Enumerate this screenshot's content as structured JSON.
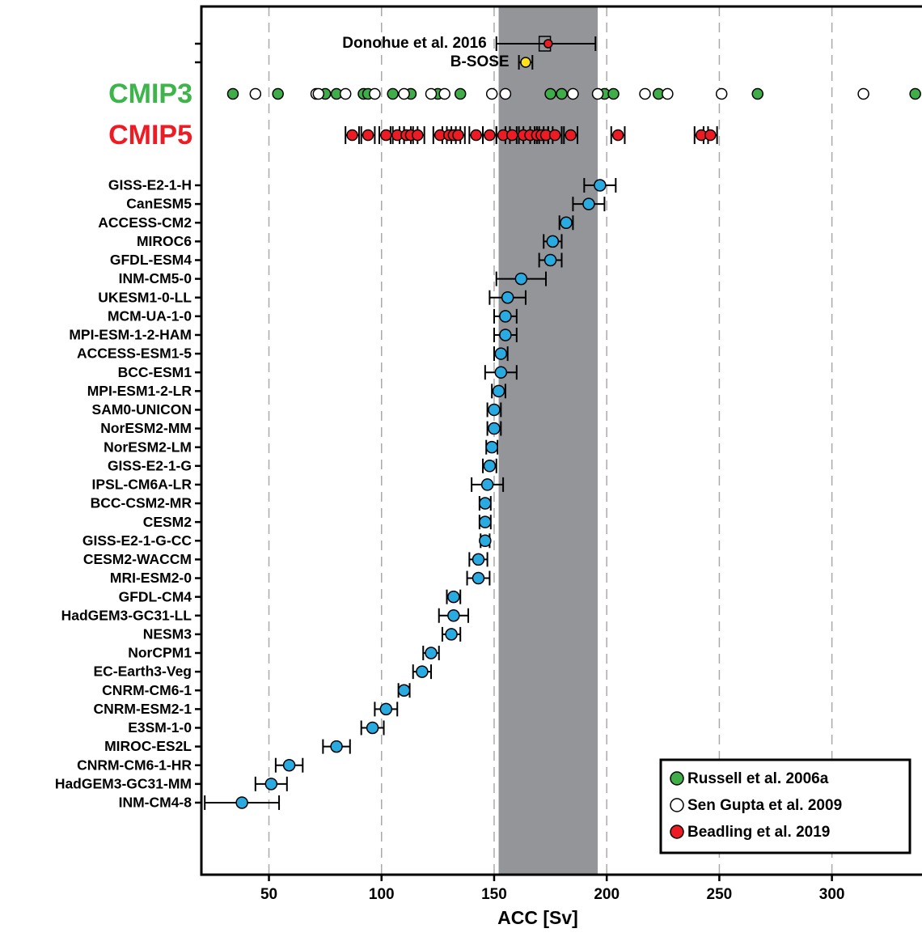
{
  "chart_data": {
    "type": "errorbar-dot",
    "xlabel": "ACC [Sv]",
    "xlim": [
      20,
      340
    ],
    "xticks": [
      50,
      100,
      150,
      200,
      250,
      300
    ],
    "grid": true,
    "band": [
      152,
      196
    ],
    "band_color": "#939598",
    "references": [
      {
        "name": "Donohue et al. 2016",
        "value": 173,
        "error": 22,
        "box": [
          170,
          175
        ],
        "dot": 174,
        "dot_color": "#ed1c24"
      },
      {
        "name": "B-SOSE",
        "value": 164,
        "error": 3,
        "color": "#ffe11b"
      }
    ],
    "groups": [
      {
        "name": "CMIP3",
        "color": "#3db54a",
        "series": [
          {
            "name": "Russell et al. 2006a",
            "color": "#3fae49",
            "values": [
              34,
              54,
              75,
              80,
              92,
              94,
              105,
              113,
              125,
              135,
              175,
              180,
              199,
              203,
              223,
              267,
              337
            ]
          },
          {
            "name": "Sen Gupta et al. 2009",
            "color": "#ffffff",
            "values": [
              44,
              71,
              72,
              84,
              97,
              110,
              122,
              128,
              149,
              155,
              185,
              196,
              217,
              227,
              251,
              314
            ]
          }
        ]
      },
      {
        "name": "CMIP5",
        "color": "#ed1c24",
        "series": [
          {
            "name": "Beadling et al. 2019",
            "color": "#ed1c24",
            "values": [
              87,
              94,
              102,
              107,
              111,
              113,
              116,
              126,
              130,
              132,
              134,
              142,
              148,
              154,
              158,
              163,
              166,
              169,
              171,
              173,
              177,
              184,
              205,
              242,
              246
            ],
            "errors": [
              3,
              3,
              3,
              3,
              3,
              3,
              3,
              3,
              3,
              3,
              3,
              3,
              3,
              3,
              3,
              3,
              3,
              3,
              3,
              3,
              3,
              3,
              3,
              3,
              3
            ]
          }
        ]
      }
    ],
    "models": {
      "color": "#29abe2",
      "categories": [
        "GISS-E2-1-H",
        "CanESM5",
        "ACCESS-CM2",
        "MIROC6",
        "GFDL-ESM4",
        "INM-CM5-0",
        "UKESM1-0-LL",
        "MCM-UA-1-0",
        "MPI-ESM-1-2-HAM",
        "ACCESS-ESM1-5",
        "BCC-ESM1",
        "MPI-ESM1-2-LR",
        "SAM0-UNICON",
        "NorESM2-MM",
        "NorESM2-LM",
        "GISS-E2-1-G",
        "IPSL-CM6A-LR",
        "BCC-CSM2-MR",
        "CESM2",
        "GISS-E2-1-G-CC",
        "CESM2-WACCM",
        "MRI-ESM2-0",
        "GFDL-CM4",
        "HadGEM3-GC31-LL",
        "NESM3",
        "NorCPM1",
        "EC-Earth3-Veg",
        "CNRM-CM6-1",
        "CNRM-ESM2-1",
        "E3SM-1-0",
        "MIROC-ES2L",
        "CNRM-CM6-1-HR",
        "HadGEM3-GC31-MM",
        "INM-CM4-8"
      ],
      "values": [
        197,
        192,
        182,
        176,
        175,
        162,
        156,
        155,
        155,
        153,
        153,
        152,
        150,
        150,
        149,
        148,
        147,
        146,
        146,
        146,
        143,
        143,
        132,
        132,
        131,
        122,
        118,
        110,
        102,
        96,
        80,
        59,
        51,
        38
      ],
      "errors": [
        7,
        7,
        3,
        4,
        5,
        11,
        8,
        5,
        5,
        3,
        7,
        3,
        3,
        3,
        2.5,
        3,
        7,
        2.5,
        2.5,
        2,
        4,
        5,
        3,
        6.5,
        4,
        3.5,
        4,
        2.5,
        5,
        5,
        6,
        6,
        7,
        16.5
      ]
    },
    "legend": "lower right"
  }
}
